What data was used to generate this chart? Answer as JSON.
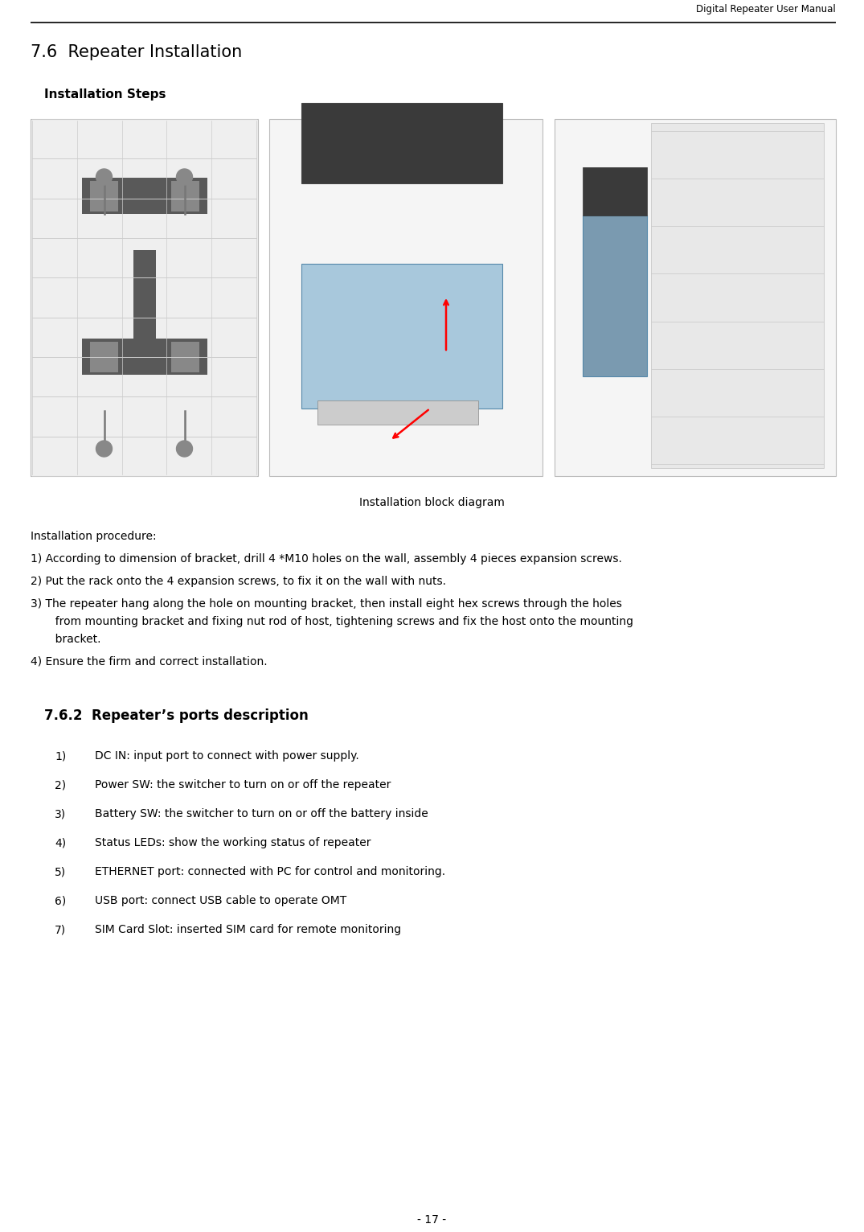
{
  "header_text": "Digital Repeater User Manual",
  "page_number": "- 17 -",
  "section_title": "7.6  Repeater Installation",
  "subsection1_title": "Installation Steps",
  "image_caption": "Installation block diagram",
  "procedure_intro": "Installation procedure:",
  "step1": "1) According to dimension of bracket, drill 4 *M10 holes on the wall, assembly 4 pieces expansion screws.",
  "step2": "2) Put the rack onto the 4 expansion screws, to fix it on the wall with nuts.",
  "step3_line1": "3) The repeater hang along the hole on mounting bracket, then install eight hex screws through the holes",
  "step3_line2": "       from mounting bracket and fixing nut rod of host, tightening screws and fix the host onto the mounting",
  "step3_line3": "       bracket.",
  "step4": "4) Ensure the firm and correct installation.",
  "subsection2_title": "7.6.2  Repeater’s ports description",
  "port_nums": [
    "1)",
    "2)",
    "3)",
    "4)",
    "5)",
    "6)",
    "7)"
  ],
  "port_descs": [
    "DC IN: input port to connect with power supply.",
    "Power SW: the switcher to turn on or off the repeater",
    "Battery SW: the switcher to turn on or off the battery inside",
    "Status LEDs: show the working status of repeater",
    "ETHERNET port: connected with PC for control and monitoring.",
    "USB port: connect USB cable to operate OMT",
    "SIM Card Slot: inserted SIM card for remote monitoring"
  ],
  "bg_color": "#ffffff",
  "text_color": "#000000",
  "font_size_header": 8.5,
  "font_size_section": 15,
  "font_size_sub1": 11,
  "font_size_body": 10,
  "font_size_sub2": 12,
  "font_size_page": 10
}
